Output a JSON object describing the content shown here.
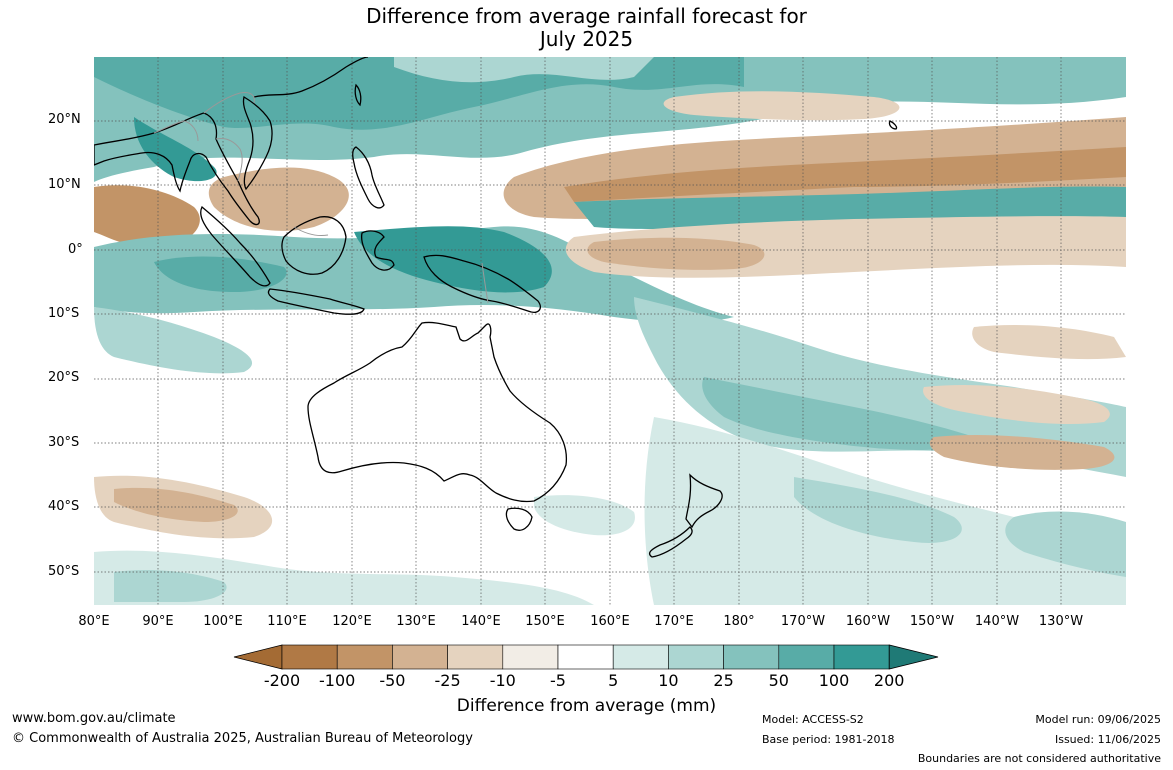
{
  "title": {
    "line1": "Difference from average rainfall forecast for",
    "line2": "July 2025"
  },
  "lat_labels": [
    "20°N",
    "10°N",
    "0°",
    "10°S",
    "20°S",
    "30°S",
    "40°S",
    "50°S"
  ],
  "lon_labels": [
    "80°E",
    "90°E",
    "100°E",
    "110°E",
    "120°E",
    "130°E",
    "140°E",
    "150°E",
    "160°E",
    "170°E",
    "180°",
    "170°W",
    "160°W",
    "150°W",
    "140°W",
    "130°W"
  ],
  "colorbar": {
    "ticks": [
      "-200",
      "-100",
      "-50",
      "-25",
      "-10",
      "-5",
      "5",
      "10",
      "25",
      "50",
      "100",
      "200"
    ],
    "colors": [
      "#a46b34",
      "#b07945",
      "#c29467",
      "#d3b292",
      "#e5d3bf",
      "#f2ede6",
      "#ffffff",
      "#d5eae7",
      "#acd6d2",
      "#84c2bd",
      "#58aca7",
      "#339a95",
      "#1f7a76"
    ],
    "label": "Difference from average (mm)"
  },
  "footer": {
    "url": "www.bom.gov.au/climate",
    "copyright": "© Commonwealth of Australia 2025, Australian Bureau of Meteorology",
    "model": "Model: ACCESS-S2",
    "base_period": "Base period: 1981-2018",
    "model_run": "Model run: 09/06/2025",
    "issued": "Issued: 11/06/2025",
    "boundaries": "Boundaries are not considered authoritative"
  }
}
